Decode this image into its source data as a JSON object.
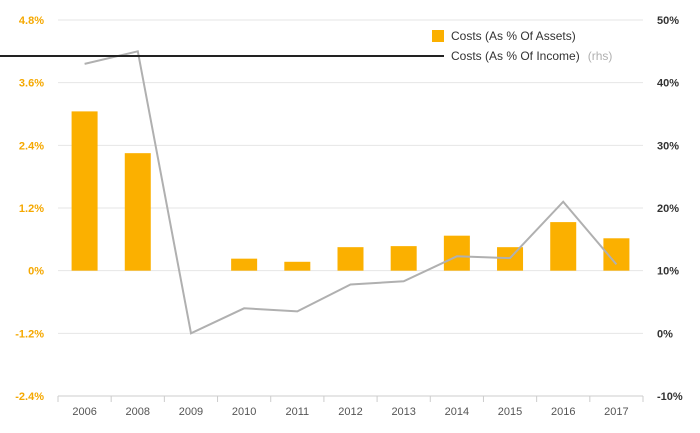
{
  "chart_data": {
    "type": "bar",
    "categories": [
      "2006",
      "2008",
      "2009",
      "2010",
      "2011",
      "2012",
      "2013",
      "2014",
      "2015",
      "2016",
      "2017"
    ],
    "series": [
      {
        "name": "Costs (As % Of Assets)",
        "type": "bar",
        "axis": "left",
        "color": "#fbb000",
        "values": [
          3.05,
          2.25,
          0,
          0.23,
          0.17,
          0.45,
          0.47,
          0.67,
          0.45,
          0.93,
          0.62
        ]
      },
      {
        "name": "Costs (As % Of Income)",
        "type": "line",
        "axis": "right",
        "color": "#b0b0b0",
        "values": [
          43,
          45,
          0,
          4,
          3.5,
          7.8,
          8.3,
          12.3,
          12,
          21,
          11
        ]
      }
    ],
    "legend_suffix": "(rhs)",
    "y_left": {
      "ylim": [
        -2.4,
        4.8
      ],
      "ticks": [
        "4.8%",
        "3.6%",
        "2.4%",
        "1.2%",
        "0%",
        "-1.2%",
        "-2.4%"
      ]
    },
    "y_right": {
      "ylim": [
        -10,
        50
      ],
      "ticks": [
        "50%",
        "40%",
        "30%",
        "20%",
        "10%",
        "0%",
        "-10%"
      ]
    },
    "grid": true,
    "legend_position": "top-right"
  }
}
